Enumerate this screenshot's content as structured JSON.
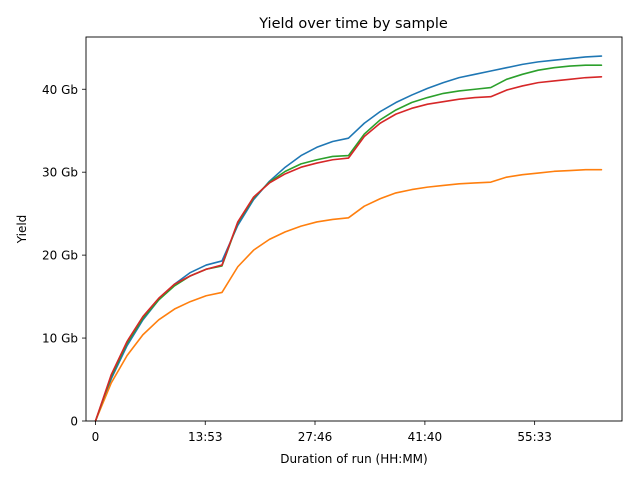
{
  "chart_data": {
    "type": "line",
    "title": "Yield over time by sample",
    "xlabel": "Duration of run (HH:MM)",
    "ylabel": "Yield",
    "x_unit": "hours",
    "xlim": [
      -1.2,
      66.6
    ],
    "ylim": [
      0,
      46.3
    ],
    "x_ticks": [
      {
        "value": 0,
        "label": "0"
      },
      {
        "value": 13.883,
        "label": "13:53"
      },
      {
        "value": 27.767,
        "label": "27:46"
      },
      {
        "value": 41.667,
        "label": "41:40"
      },
      {
        "value": 55.55,
        "label": "55:33"
      }
    ],
    "y_ticks": [
      {
        "value": 0,
        "label": "0"
      },
      {
        "value": 10,
        "label": "10 Gb"
      },
      {
        "value": 20,
        "label": "20 Gb"
      },
      {
        "value": 30,
        "label": "30 Gb"
      },
      {
        "value": 40,
        "label": "40 Gb"
      }
    ],
    "grid": false,
    "legend": "none",
    "series": [
      {
        "color": "#1f77b4",
        "x": [
          0,
          2,
          4,
          6,
          8,
          10,
          12,
          14,
          16,
          18,
          20,
          22,
          24,
          26,
          28,
          30,
          32,
          34,
          36,
          38,
          40,
          42,
          44,
          46,
          48,
          50,
          52,
          54,
          56,
          58,
          60,
          62,
          64
        ],
        "y": [
          0,
          5.1,
          9.1,
          12.2,
          14.6,
          16.5,
          17.9,
          18.8,
          19.3,
          23.6,
          26.7,
          28.9,
          30.6,
          32.0,
          33.0,
          33.7,
          34.1,
          35.9,
          37.3,
          38.4,
          39.3,
          40.1,
          40.8,
          41.4,
          41.8,
          42.2,
          42.6,
          43.0,
          43.3,
          43.5,
          43.7,
          43.9,
          44.0
        ]
      },
      {
        "color": "#ff7f0e",
        "x": [
          0,
          2,
          4,
          6,
          8,
          10,
          12,
          14,
          16,
          18,
          20,
          22,
          24,
          26,
          28,
          30,
          32,
          34,
          36,
          38,
          40,
          42,
          44,
          46,
          48,
          50,
          52,
          54,
          56,
          58,
          60,
          62,
          64
        ],
        "y": [
          0,
          4.6,
          7.9,
          10.4,
          12.2,
          13.5,
          14.4,
          15.1,
          15.5,
          18.6,
          20.6,
          21.9,
          22.8,
          23.5,
          24.0,
          24.3,
          24.5,
          25.9,
          26.8,
          27.5,
          27.9,
          28.2,
          28.4,
          28.6,
          28.7,
          28.8,
          29.4,
          29.7,
          29.9,
          30.1,
          30.2,
          30.3,
          30.3
        ]
      },
      {
        "color": "#2ca02c",
        "x": [
          0,
          2,
          4,
          6,
          8,
          10,
          12,
          14,
          16,
          18,
          20,
          22,
          24,
          26,
          28,
          30,
          32,
          34,
          36,
          38,
          40,
          42,
          44,
          46,
          48,
          50,
          52,
          54,
          56,
          58,
          60,
          62,
          64
        ],
        "y": [
          0,
          5.4,
          9.4,
          12.4,
          14.6,
          16.3,
          17.5,
          18.3,
          18.7,
          23.9,
          26.9,
          28.8,
          30.1,
          31.0,
          31.5,
          31.9,
          32.0,
          34.6,
          36.3,
          37.5,
          38.4,
          39.0,
          39.5,
          39.8,
          40.0,
          40.2,
          41.2,
          41.8,
          42.3,
          42.6,
          42.8,
          42.9,
          42.9
        ]
      },
      {
        "color": "#d62728",
        "x": [
          0,
          2,
          4,
          6,
          8,
          10,
          12,
          14,
          16,
          18,
          20,
          22,
          24,
          26,
          28,
          30,
          32,
          34,
          36,
          38,
          40,
          42,
          44,
          46,
          48,
          50,
          52,
          54,
          56,
          58,
          60,
          62,
          64
        ],
        "y": [
          0,
          5.6,
          9.6,
          12.6,
          14.8,
          16.5,
          17.5,
          18.3,
          18.8,
          24.0,
          27.0,
          28.7,
          29.8,
          30.6,
          31.1,
          31.5,
          31.7,
          34.3,
          35.9,
          37.0,
          37.7,
          38.2,
          38.5,
          38.8,
          39.0,
          39.1,
          39.9,
          40.4,
          40.8,
          41.0,
          41.2,
          41.4,
          41.5
        ]
      }
    ]
  }
}
